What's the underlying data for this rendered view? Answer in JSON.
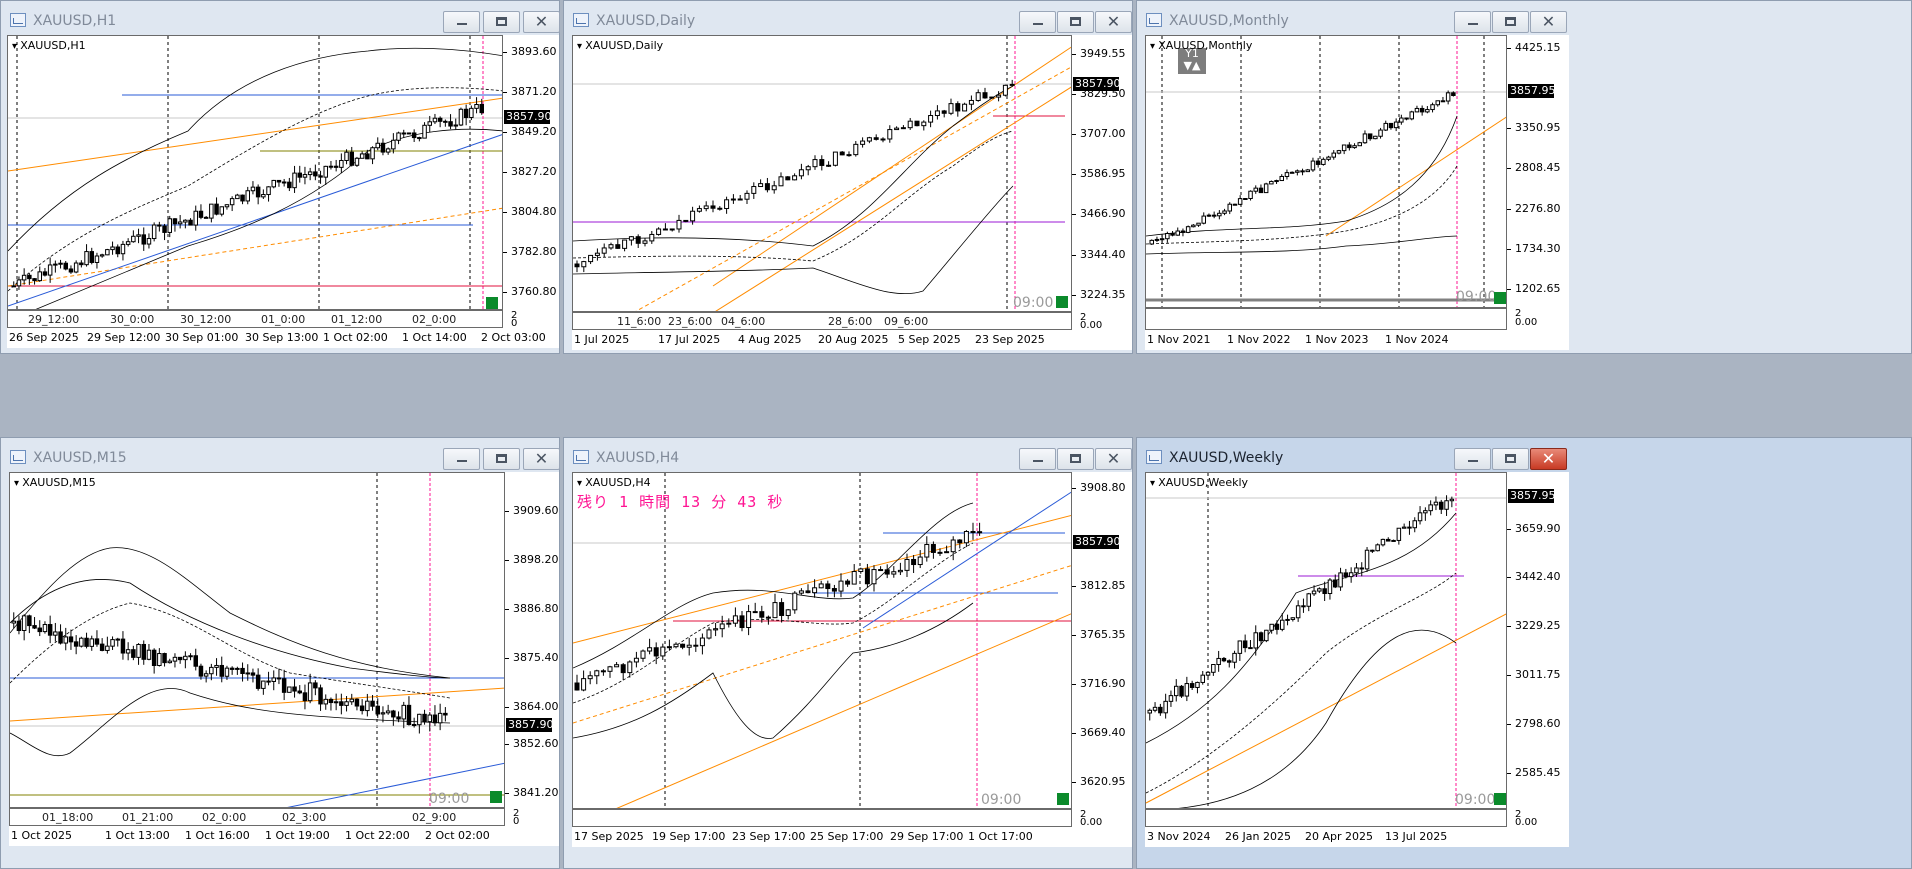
{
  "windows": [
    {
      "id": "h1",
      "title": "XAUUSD,H1",
      "symbol": "XAUUSD,H1",
      "active": false,
      "close_red": false,
      "y_ticks": [
        "3893.60",
        "3871.20",
        "3849.20",
        "3827.20",
        "3804.80",
        "3782.80",
        "3760.80"
      ],
      "current_price": "3857.90",
      "bottom_small": "2",
      "bottom_small2": "0",
      "x_top_labels": [
        "29_12:00",
        "30_0:00",
        "30_12:00",
        "01_0:00",
        "01_12:00",
        "02_0:00"
      ],
      "x_labels": [
        "26 Sep 2025",
        "29 Sep 12:00",
        "30 Sep 01:00",
        "30 Sep 13:00",
        "1 Oct 02:00",
        "1 Oct 14:00",
        "2 Oct 03:00"
      ],
      "time_stamp": "",
      "indicator": "",
      "countdown": ""
    },
    {
      "id": "daily",
      "title": "XAUUSD,Daily",
      "symbol": "XAUUSD,Daily",
      "active": false,
      "close_red": false,
      "y_ticks": [
        "3949.55",
        "3829.50",
        "3707.00",
        "3586.95",
        "3466.90",
        "3344.40",
        "3224.35"
      ],
      "current_price": "3857.90",
      "bottom_small": "2",
      "bottom_small2": "0.00",
      "x_top_labels": [
        "11_6:00",
        "23_6:00",
        "04_6:00",
        "28_6:00",
        "09_6:00"
      ],
      "x_labels": [
        "1 Jul 2025",
        "17 Jul 2025",
        "4 Aug 2025",
        "20 Aug 2025",
        "5 Sep 2025",
        "23 Sep 2025"
      ],
      "time_stamp": "09:00",
      "indicator": "",
      "countdown": ""
    },
    {
      "id": "monthly",
      "title": "XAUUSD,Monthly",
      "symbol": "XAUUSD,Monthly",
      "active": false,
      "close_red": false,
      "y_ticks": [
        "4425.15",
        "3350.95",
        "2808.45",
        "2276.80",
        "1734.30",
        "1202.65"
      ],
      "current_price": "3857.95",
      "bottom_small": "2",
      "bottom_small2": "0.00",
      "x_top_labels": [],
      "x_labels": [
        "1 Nov 2021",
        "1 Nov 2022",
        "1 Nov 2023",
        "1 Nov 2024"
      ],
      "time_stamp": "09:00",
      "indicator": "Y1",
      "countdown": ""
    },
    {
      "id": "m15",
      "title": "XAUUSD,M15",
      "symbol": "XAUUSD,M15",
      "active": false,
      "close_red": false,
      "y_ticks": [
        "3909.60",
        "3898.20",
        "3886.80",
        "3875.40",
        "3864.00",
        "3852.60",
        "3841.20"
      ],
      "current_price": "3857.90",
      "bottom_small": "2",
      "bottom_small2": "0",
      "x_top_labels": [
        "01_18:00",
        "01_21:00",
        "02_0:00",
        "02_3:00",
        "02_9:00"
      ],
      "x_labels": [
        "1 Oct 2025",
        "1 Oct 13:00",
        "1 Oct 16:00",
        "1 Oct 19:00",
        "1 Oct 22:00",
        "2 Oct 02:00"
      ],
      "time_stamp": "09:00",
      "indicator": "",
      "countdown": ""
    },
    {
      "id": "h4",
      "title": "XAUUSD,H4",
      "symbol": "XAUUSD,H4",
      "active": false,
      "close_red": false,
      "y_ticks": [
        "3908.80",
        "3812.85",
        "3765.35",
        "3716.90",
        "3669.40",
        "3620.95"
      ],
      "current_price": "3857.90",
      "bottom_small": "2",
      "bottom_small2": "0.00",
      "x_top_labels": [],
      "x_labels": [
        "17 Sep 2025",
        "19 Sep 17:00",
        "23 Sep 17:00",
        "25 Sep 17:00",
        "29 Sep 17:00",
        "1 Oct 17:00"
      ],
      "time_stamp": "09:00",
      "indicator": "",
      "countdown": "残り 1 時間 13 分 43 秒"
    },
    {
      "id": "weekly",
      "title": "XAUUSD,Weekly",
      "symbol": "XAUUSD,Weekly",
      "active": true,
      "close_red": true,
      "y_ticks": [
        "3659.90",
        "3442.40",
        "3229.25",
        "3011.75",
        "2798.60",
        "2585.45"
      ],
      "current_price": "3857.95",
      "bottom_small": "2",
      "bottom_small2": "0.00",
      "x_top_labels": [],
      "x_labels": [
        "3 Nov 2024",
        "26 Jan 2025",
        "20 Apr 2025",
        "13 Jul 2025"
      ],
      "time_stamp": "09:00",
      "indicator": "",
      "countdown": ""
    }
  ],
  "colors": {
    "candle_up": "#ffffff",
    "candle_down": "#000000",
    "bollinger": "#000000",
    "trend_orange": "#ff8c00",
    "trend_blue": "#2a5bd7",
    "support_red": "#e0103c",
    "level_purple": "#9b1ad6",
    "session_pink": "#ff1493",
    "olive": "#808000"
  }
}
